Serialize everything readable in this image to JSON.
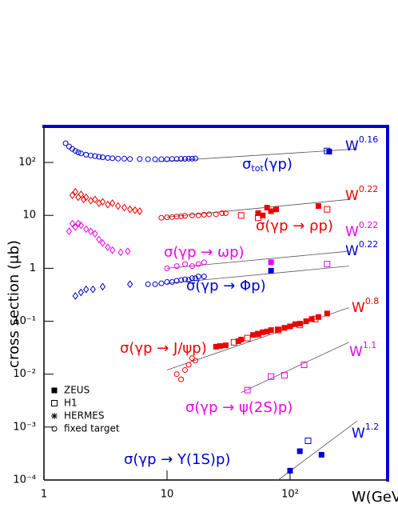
{
  "chart_data": {
    "type": "scatter",
    "xlabel": "W(GeV)",
    "ylabel": "cross section (μb)",
    "xlog": true,
    "ylog": true,
    "xlim": [
      1,
      620
    ],
    "ylim": [
      0.0001,
      480
    ],
    "xticks": [
      1,
      10,
      {
        "value": 100,
        "label": "10²"
      }
    ],
    "yticks": [
      {
        "value": 0.0001,
        "label": "10⁻⁴"
      },
      {
        "value": 0.001,
        "label": "10⁻³"
      },
      {
        "value": 0.01,
        "label": "10⁻²"
      },
      {
        "value": 0.1,
        "label": "10⁻¹"
      },
      1,
      10,
      {
        "value": 100,
        "label": "10²"
      }
    ],
    "series": [
      {
        "color": "#0000cc",
        "marker": "open-circle",
        "x": [
          1.5,
          1.6,
          1.7,
          1.8,
          1.9,
          2.0,
          2.2,
          2.4,
          2.6,
          2.8,
          3.0,
          3.3,
          3.6,
          4,
          4.5,
          5,
          6,
          7,
          8,
          9,
          10,
          11,
          12,
          13,
          14,
          15,
          16,
          17
        ],
        "values": [
          230,
          200,
          180,
          165,
          155,
          148,
          140,
          135,
          132,
          128,
          125,
          122,
          120,
          118,
          118,
          116,
          116,
          115,
          115,
          115,
          115,
          116,
          116,
          117,
          117,
          118,
          118,
          119
        ]
      },
      {
        "color": "#0000cc",
        "marker": "filled-square",
        "x": [
          208
        ],
        "values": [
          160
        ]
      },
      {
        "color": "#0000cc",
        "marker": "open-square",
        "x": [
          200
        ],
        "values": [
          165
        ]
      },
      {
        "color": "#ee0000",
        "marker": "open-diamond",
        "x": [
          1.7,
          1.8,
          1.9,
          2.0,
          2.1,
          2.2,
          2.4,
          2.6,
          2.8,
          3.0,
          3.3,
          3.6,
          4.0,
          4.5,
          5,
          5.5,
          6
        ],
        "values": [
          24,
          28,
          22,
          25,
          20,
          22,
          19,
          20,
          17,
          18,
          16,
          17,
          15,
          14,
          13,
          12.5,
          12
        ]
      },
      {
        "color": "#ee0000",
        "marker": "open-circle",
        "x": [
          9,
          10,
          11,
          12,
          13,
          14,
          16,
          18,
          20,
          22,
          25,
          28,
          30
        ],
        "values": [
          9,
          9.2,
          9.3,
          9.5,
          9.6,
          9.8,
          10,
          10,
          10.3,
          10.5,
          10.5,
          11,
          11
        ]
      },
      {
        "color": "#ee0000",
        "marker": "filled-square",
        "x": [
          55,
          60,
          65,
          70,
          77,
          170
        ],
        "values": [
          11,
          10,
          14,
          12,
          13,
          15
        ]
      },
      {
        "color": "#ee0000",
        "marker": "open-square",
        "x": [
          40,
          55,
          200
        ],
        "values": [
          10,
          9,
          13
        ]
      },
      {
        "color": "#ee00ee",
        "marker": "open-diamond",
        "x": [
          1.6,
          1.7,
          1.8,
          1.9,
          2.0,
          2.2,
          2.4,
          2.6,
          2.8,
          3.0,
          3.3,
          3.6,
          4.2,
          4.8
        ],
        "values": [
          5,
          7,
          6,
          7,
          6.5,
          5.5,
          5,
          4.5,
          3.5,
          3,
          2.5,
          2.2,
          2,
          2.1
        ]
      },
      {
        "color": "#ee00ee",
        "marker": "open-circle",
        "x": [
          10,
          12,
          14,
          16,
          18,
          20
        ],
        "values": [
          1.0,
          1.1,
          1.2,
          1.1,
          1.2,
          1.3
        ]
      },
      {
        "color": "#ee00ee",
        "marker": "filled-square",
        "x": [
          70
        ],
        "values": [
          1.3
        ]
      },
      {
        "color": "#ee00ee",
        "marker": "open-square",
        "x": [
          200
        ],
        "values": [
          1.2
        ]
      },
      {
        "color": "#0000cc",
        "marker": "open-diamond",
        "x": [
          1.8,
          2.0,
          2.2,
          2.5,
          3.0,
          5.0
        ],
        "values": [
          0.3,
          0.35,
          0.4,
          0.4,
          0.45,
          0.5
        ]
      },
      {
        "color": "#0000cc",
        "marker": "open-circle",
        "x": [
          7,
          8,
          9,
          10,
          11,
          12,
          13,
          14,
          15,
          16,
          17,
          18,
          20
        ],
        "values": [
          0.5,
          0.5,
          0.52,
          0.55,
          0.55,
          0.58,
          0.6,
          0.62,
          0.6,
          0.65,
          0.65,
          0.7,
          0.7
        ]
      },
      {
        "color": "#0000cc",
        "marker": "filled-square",
        "x": [
          70
        ],
        "values": [
          0.9
        ]
      },
      {
        "color": "#ee0000",
        "marker": "open-circle",
        "x": [
          12,
          13,
          14,
          15,
          16,
          17
        ],
        "values": [
          0.01,
          0.008,
          0.012,
          0.015,
          0.02,
          0.018
        ]
      },
      {
        "color": "#ee0000",
        "marker": "filled-square",
        "x": [
          25,
          27,
          30,
          38,
          40,
          50,
          55,
          60,
          65,
          70,
          80,
          90,
          100,
          110,
          120,
          135,
          150,
          170,
          200
        ],
        "values": [
          0.033,
          0.034,
          0.035,
          0.042,
          0.045,
          0.055,
          0.058,
          0.062,
          0.064,
          0.068,
          0.07,
          0.075,
          0.08,
          0.088,
          0.09,
          0.1,
          0.11,
          0.12,
          0.14
        ]
      },
      {
        "color": "#ee0000",
        "marker": "open-square",
        "x": [
          35,
          45,
          55,
          80,
          120,
          160
        ],
        "values": [
          0.04,
          0.048,
          0.057,
          0.068,
          0.085,
          0.11
        ]
      },
      {
        "color": "#ee00ee",
        "marker": "open-square",
        "x": [
          45,
          70,
          90,
          130
        ],
        "values": [
          0.005,
          0.009,
          0.0095,
          0.015
        ]
      },
      {
        "color": "#0000cc",
        "marker": "filled-square",
        "x": [
          100,
          120,
          180
        ],
        "values": [
          0.00015,
          0.00035,
          0.0003
        ]
      },
      {
        "color": "#0000cc",
        "marker": "open-square",
        "x": [
          140
        ],
        "values": [
          0.00055
        ]
      }
    ],
    "fits": [
      {
        "color": "#0000cc",
        "label": "W",
        "exponent": 0.16,
        "x": [
          8,
          350
        ],
        "values": [
          103,
          180
        ]
      },
      {
        "color": "#ee0000",
        "label": "W",
        "exponent": 0.22,
        "x": [
          10,
          300
        ],
        "values": [
          9.3,
          20
        ]
      },
      {
        "color": "#ee00ee",
        "label": "W",
        "exponent": 0.22,
        "x": [
          10,
          300
        ],
        "values": [
          1.0,
          2.1
        ]
      },
      {
        "color": "#0000cc",
        "label": "W",
        "exponent": 0.22,
        "x": [
          10,
          300
        ],
        "values": [
          0.52,
          1.1
        ]
      },
      {
        "color": "#ee0000",
        "label": "W",
        "exponent": 0.8,
        "x": [
          10,
          300
        ],
        "values": [
          0.012,
          0.18
        ]
      },
      {
        "color": "#ee00ee",
        "label": "W",
        "exponent": 1.1,
        "x": [
          40,
          300
        ],
        "values": [
          0.0045,
          0.04
        ]
      },
      {
        "color": "#0000cc",
        "label": "W",
        "exponent": 1.2,
        "x": [
          80,
          350
        ],
        "values": [
          0.0001,
          0.0013
        ]
      }
    ],
    "annotations": [
      {
        "color": "#0000cc",
        "text": "σ",
        "sub": "tot",
        "after": "(γp)"
      },
      {
        "color": "#ee0000",
        "text": "σ(γp → ρp)"
      },
      {
        "color": "#ee00ee",
        "text": "σ(γp → ωp)"
      },
      {
        "color": "#0000cc",
        "text": "σ(γp → Φp)"
      },
      {
        "color": "#ee0000",
        "text": "σ(γp → J/ψp)"
      },
      {
        "color": "#ee00ee",
        "text": "σ(γp → ψ(2S)p)"
      },
      {
        "color": "#0000cc",
        "text": "σ(γp → Υ(1S)p)"
      }
    ],
    "legend": {
      "position": "lower left",
      "entries": [
        {
          "label": "ZEUS",
          "marker": "filled-square"
        },
        {
          "label": "H1",
          "marker": "open-square"
        },
        {
          "label": "HERMES",
          "marker": "asterisk"
        },
        {
          "label": "fixed target",
          "marker": "open-circle"
        }
      ]
    }
  }
}
